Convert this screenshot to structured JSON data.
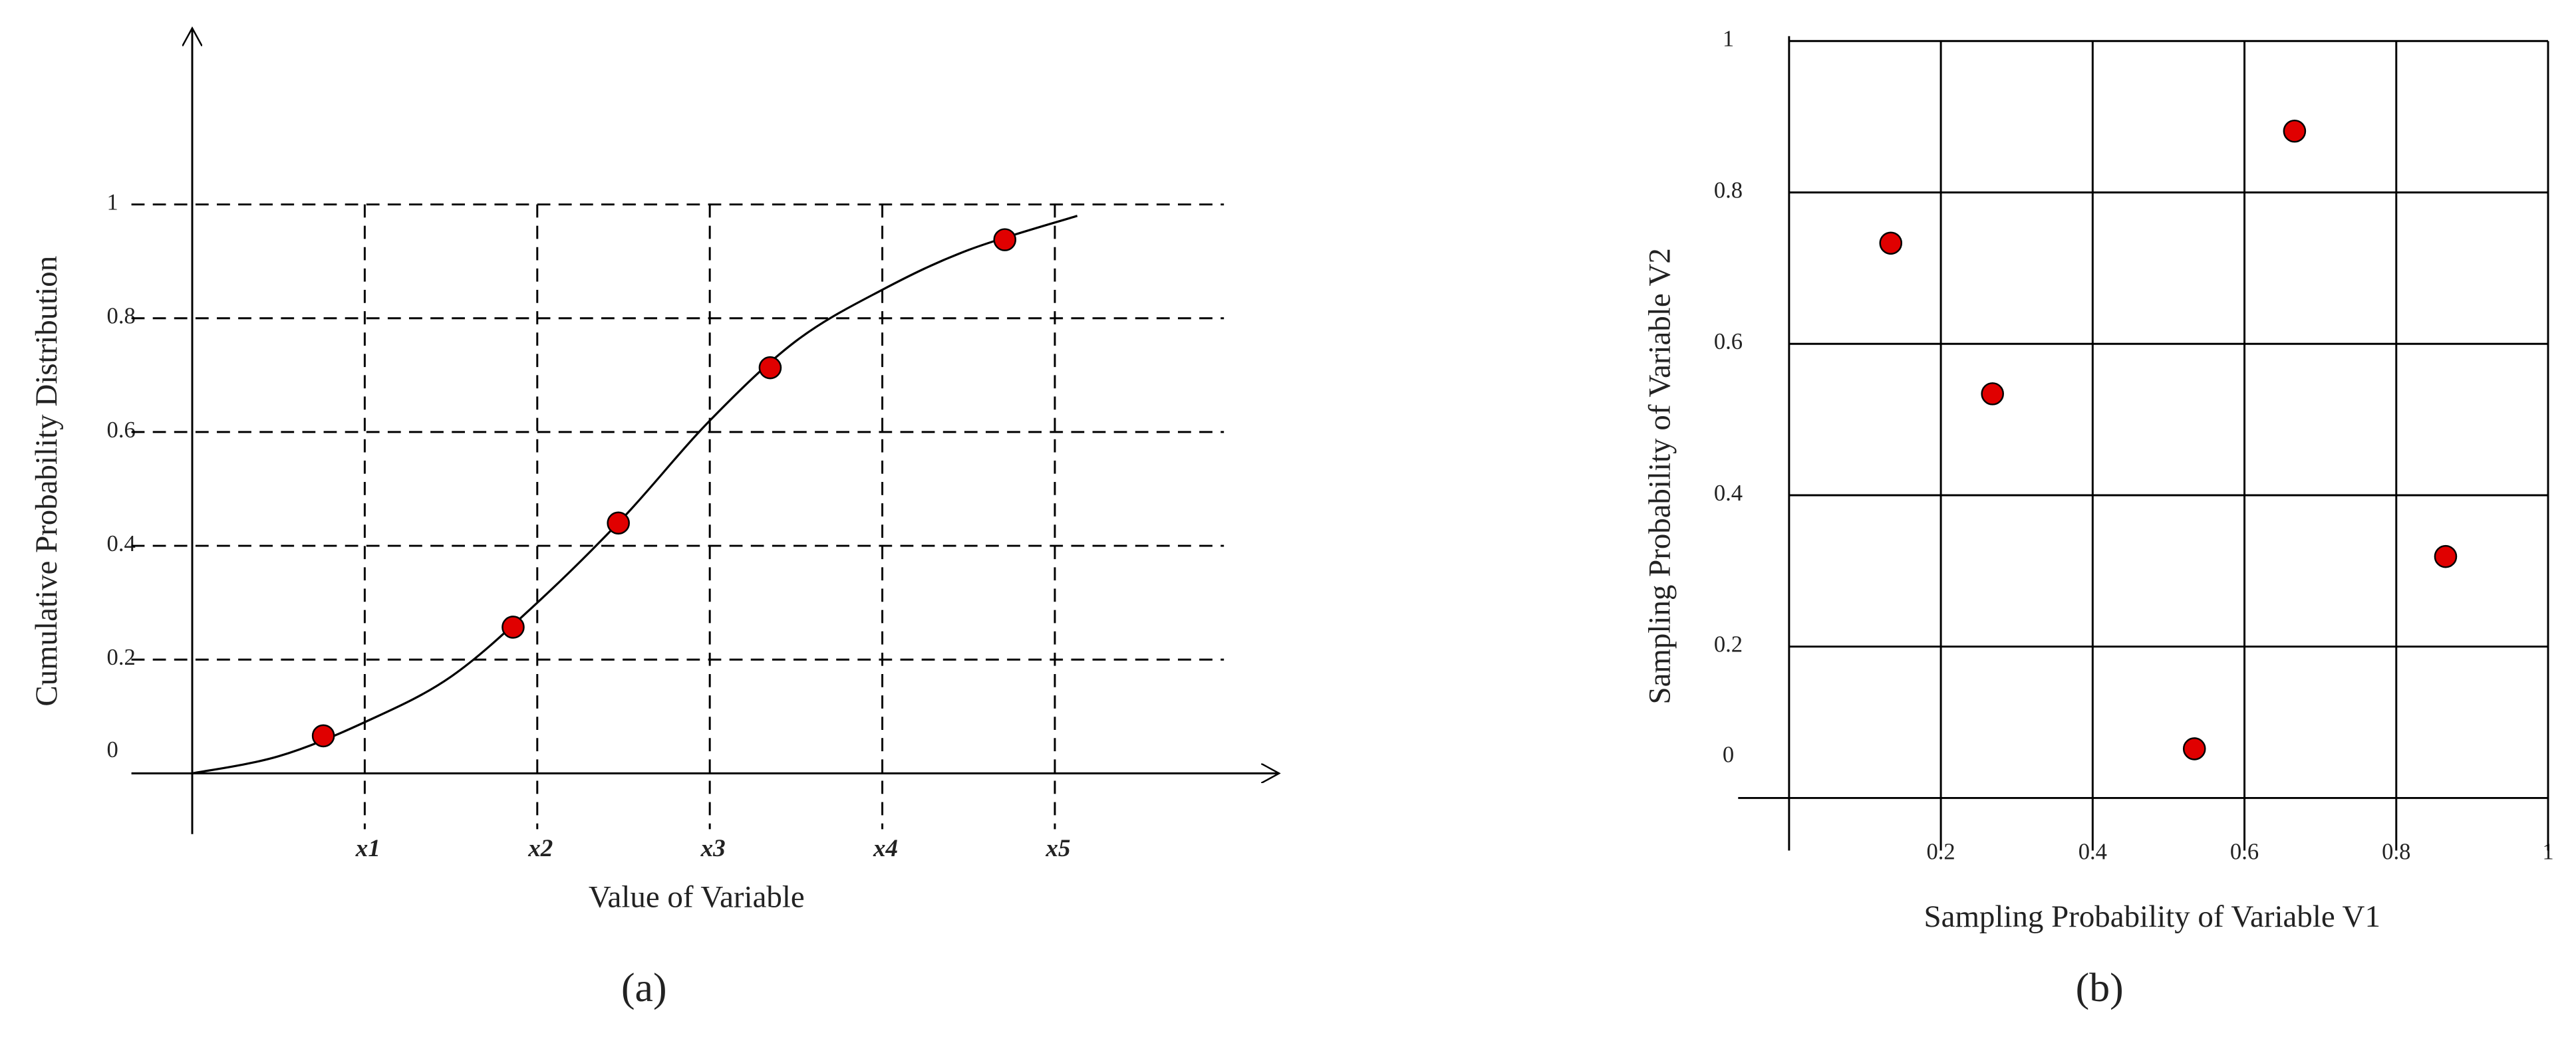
{
  "chart_data": [
    {
      "type": "line",
      "caption": "(a)",
      "x_label": "Value of Variable",
      "y_label": "Cumulative Probability Distribution",
      "xlim": [
        0,
        6.3
      ],
      "ylim": [
        0,
        1.31
      ],
      "xticks": [
        {
          "value": 1,
          "label": "x1"
        },
        {
          "value": 2,
          "label": "x2"
        },
        {
          "value": 3,
          "label": "x3"
        },
        {
          "value": 4,
          "label": "x4"
        },
        {
          "value": 5,
          "label": "x5"
        }
      ],
      "yticks": [
        0,
        0.2,
        0.4,
        0.6,
        0.8,
        1
      ],
      "grid": true,
      "grid_style": "dashed",
      "curve": {
        "color": "#000000",
        "x": [
          0,
          0.5,
          1,
          1.5,
          2,
          2.5,
          3,
          3.5,
          4,
          4.5,
          5.13
        ],
        "y": [
          0,
          0.03,
          0.09,
          0.17,
          0.3,
          0.45,
          0.62,
          0.76,
          0.85,
          0.92,
          0.98
        ]
      },
      "points": {
        "color": "#e00000",
        "x": [
          0.76,
          1.86,
          2.47,
          3.35,
          4.71
        ],
        "y": [
          0.066,
          0.257,
          0.44,
          0.713,
          0.938
        ]
      }
    },
    {
      "type": "scatter",
      "caption": "(b)",
      "x_label": "Sampling Probability of Variable V1",
      "y_label": "Sampling Probability of Variable V2",
      "xlim": [
        0,
        1
      ],
      "ylim": [
        0,
        1
      ],
      "xticks": [
        0.2,
        0.4,
        0.6,
        0.8,
        1
      ],
      "yticks": [
        0,
        0.2,
        0.4,
        0.6,
        0.8,
        1
      ],
      "grid": true,
      "grid_style": "solid",
      "points": {
        "color": "#e00000",
        "x": [
          0.134,
          0.268,
          0.534,
          0.666,
          0.865
        ],
        "y": [
          0.733,
          0.534,
          0.065,
          0.881,
          0.319
        ]
      }
    }
  ]
}
